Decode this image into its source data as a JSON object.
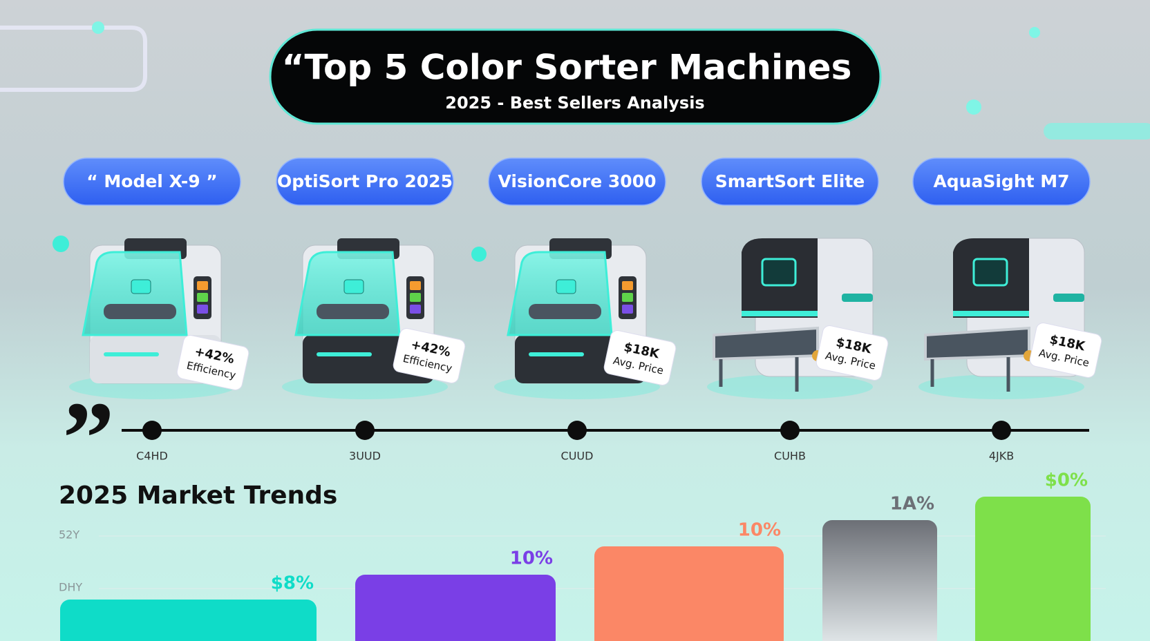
{
  "header": {
    "title": "“Top 5 Color Sorter Machines",
    "subtitle": "2025 - Best Sellers Analysis"
  },
  "products": [
    {
      "name": "“ Model X-9 ”",
      "badge_value": "+42%",
      "badge_label": "Efficiency",
      "timeline_label": "C4HD"
    },
    {
      "name": "OptiSort Pro 2025",
      "badge_value": "+42%",
      "badge_label": "Efficiency",
      "timeline_label": "3UUD"
    },
    {
      "name": "VisionCore 3000",
      "badge_value": "$18K",
      "badge_label": "Avg. Price",
      "timeline_label": "CUUD"
    },
    {
      "name": "SmartSort Elite",
      "badge_value": "$18K",
      "badge_label": "Avg. Price",
      "timeline_label": "CUHB"
    },
    {
      "name": "AquaSight M7",
      "badge_value": "$18K",
      "badge_label": "Avg. Price",
      "timeline_label": "4JKB"
    }
  ],
  "quote_mark": "”",
  "trends": {
    "title": "2025 Market Trends",
    "axis_labels": [
      "52Y",
      "DHY"
    ],
    "bars": [
      {
        "label": "$8%",
        "color": "#0fdcc8"
      },
      {
        "label": "10%",
        "color": "#7a3fe6"
      },
      {
        "label": "10%",
        "color": "#fb8766"
      },
      {
        "label": "1A%",
        "color": "#6c6f76"
      },
      {
        "label": "$0%",
        "color": "#7ee04a"
      }
    ]
  }
}
